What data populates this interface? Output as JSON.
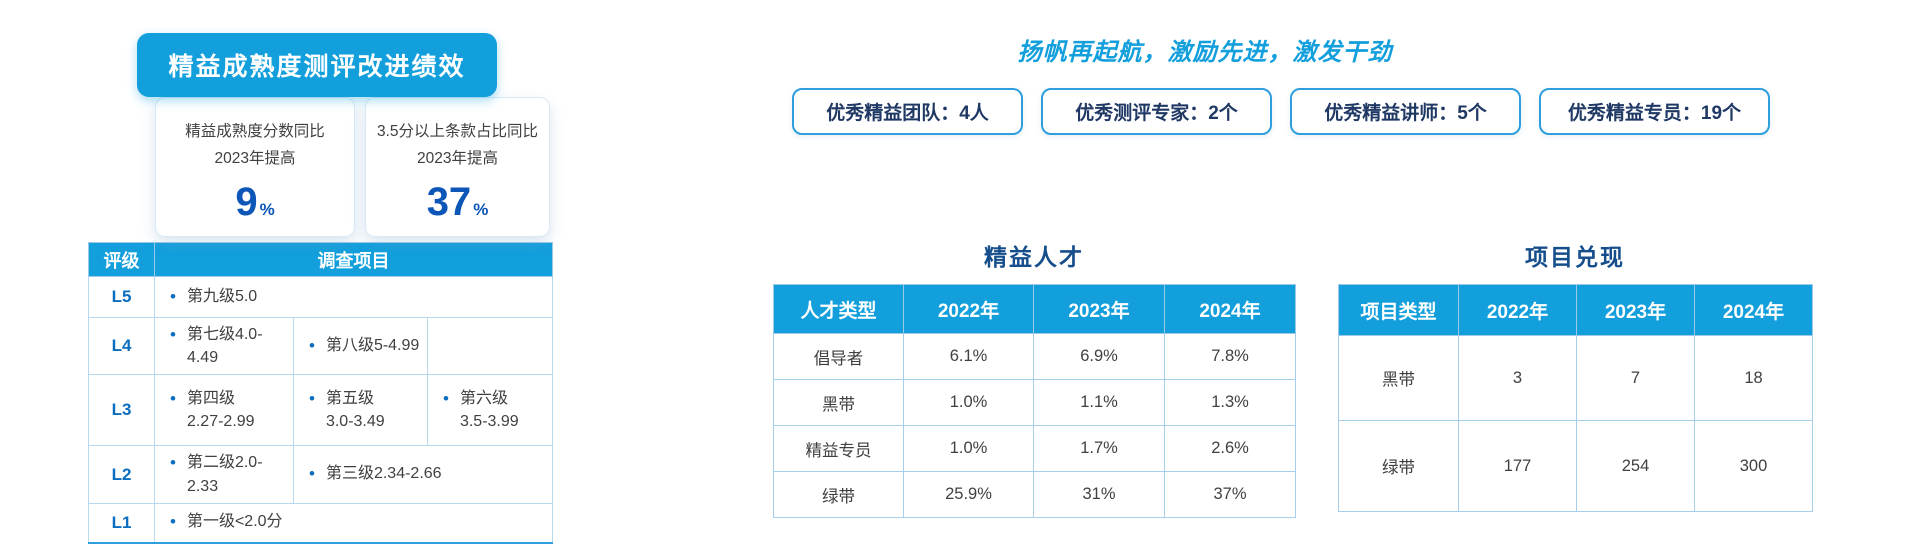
{
  "colors": {
    "accent_blue": "#129fdc",
    "number_blue": "#0c56b8",
    "level_blue": "#0b6dbe",
    "badge_navy": "#1f3864",
    "table_title_blue": "#164e8c",
    "light_border": "#a6cfec"
  },
  "left_panel": {
    "banner_title": "精益成熟度测评改进绩效",
    "stat_cards": [
      {
        "line1": "精益成熟度分数同比",
        "line2": "2023年提高",
        "value": "9",
        "unit": "%"
      },
      {
        "line1": "3.5分以上条款占比同比",
        "line2": "2023年提高",
        "value": "37",
        "unit": "%"
      }
    ],
    "rating_table": {
      "header_col1": "评级",
      "header_col2": "调查项目",
      "rows": [
        {
          "label": "L5",
          "cells": [
            {
              "text": "第九级5.0",
              "span": 3
            }
          ]
        },
        {
          "label": "L4",
          "cells": [
            {
              "text": "第七级4.0-4.49",
              "span": 1
            },
            {
              "text": "第八级5-4.99",
              "span": 1
            },
            {
              "text": "",
              "span": 1
            }
          ]
        },
        {
          "label": "L3",
          "cells": [
            {
              "text": "第四级\n2.27-2.99",
              "span": 1
            },
            {
              "text": "第五级\n3.0-3.49",
              "span": 1
            },
            {
              "text": "第六级\n3.5-3.99",
              "span": 1
            }
          ]
        },
        {
          "label": "L2",
          "cells": [
            {
              "text": "第二级2.0-2.33",
              "span": 1
            },
            {
              "text": "第三级2.34-2.66",
              "span": 2
            }
          ]
        },
        {
          "label": "L1",
          "cells": [
            {
              "text": "第一级<2.0分",
              "span": 3
            }
          ]
        }
      ]
    }
  },
  "right_panel": {
    "slogan": "扬帆再起航，激励先进，激发干劲",
    "badges": [
      "优秀精益团队：4人",
      "优秀测评专家：2个",
      "优秀精益讲师：5个",
      "优秀精益专员：19个"
    ],
    "talent_table": {
      "title": "精益人才",
      "headers": [
        "人才类型",
        "2022年",
        "2023年",
        "2024年"
      ],
      "rows": [
        [
          "倡导者",
          "6.1%",
          "6.9%",
          "7.8%"
        ],
        [
          "黑带",
          "1.0%",
          "1.1%",
          "1.3%"
        ],
        [
          "精益专员",
          "1.0%",
          "1.7%",
          "2.6%"
        ],
        [
          "绿带",
          "25.9%",
          "31%",
          "37%"
        ]
      ]
    },
    "project_table": {
      "title": "项目兑现",
      "headers": [
        "项目类型",
        "2022年",
        "2023年",
        "2024年"
      ],
      "rows": [
        [
          "黑带",
          "3",
          "7",
          "18"
        ],
        [
          "绿带",
          "177",
          "254",
          "300"
        ]
      ]
    }
  }
}
